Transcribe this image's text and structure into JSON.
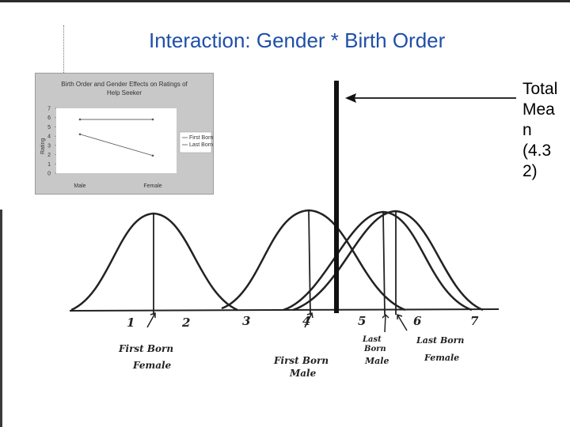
{
  "title": "Interaction: Gender * Birth Order",
  "side_note": {
    "lines": [
      "Total",
      "Mea",
      "n",
      "(4.3",
      "2)"
    ]
  },
  "inset_chart": {
    "title_lines": [
      "Birth Order and Gender Effects on Ratings of",
      "Help Seeker"
    ]
  },
  "chart_data": {
    "type": "line",
    "title": "Birth Order and Gender Effects on Ratings of Help Seeker",
    "xlabel": "",
    "ylabel": "Rating",
    "categories": [
      "Male",
      "Female"
    ],
    "ylim": [
      0,
      7
    ],
    "yticks": [
      "0",
      "1",
      "2",
      "3",
      "4",
      "5",
      "6",
      "7"
    ],
    "series": [
      {
        "name": "First Born",
        "values": [
          5.8,
          5.8
        ]
      },
      {
        "name": "Last Born",
        "values": [
          4.2,
          1.9
        ]
      }
    ],
    "legend": "right",
    "grid": false
  },
  "hand_drawing": {
    "axis_numbers": [
      "1",
      "2",
      "3",
      "4",
      "5",
      "6",
      "7"
    ],
    "labels": [
      {
        "line1": "First Born",
        "line2": "Female"
      },
      {
        "line1": "First Born",
        "line2": "Male"
      },
      {
        "line1": "Last",
        "line2": "Born",
        "line3": "Male"
      },
      {
        "line1": "Last Born",
        "line2": "Female"
      }
    ]
  },
  "colors": {
    "title": "#1f4fa8",
    "inset_bg": "#c8c8c8",
    "line_first_born": "#555555",
    "line_last_born": "#555555"
  }
}
